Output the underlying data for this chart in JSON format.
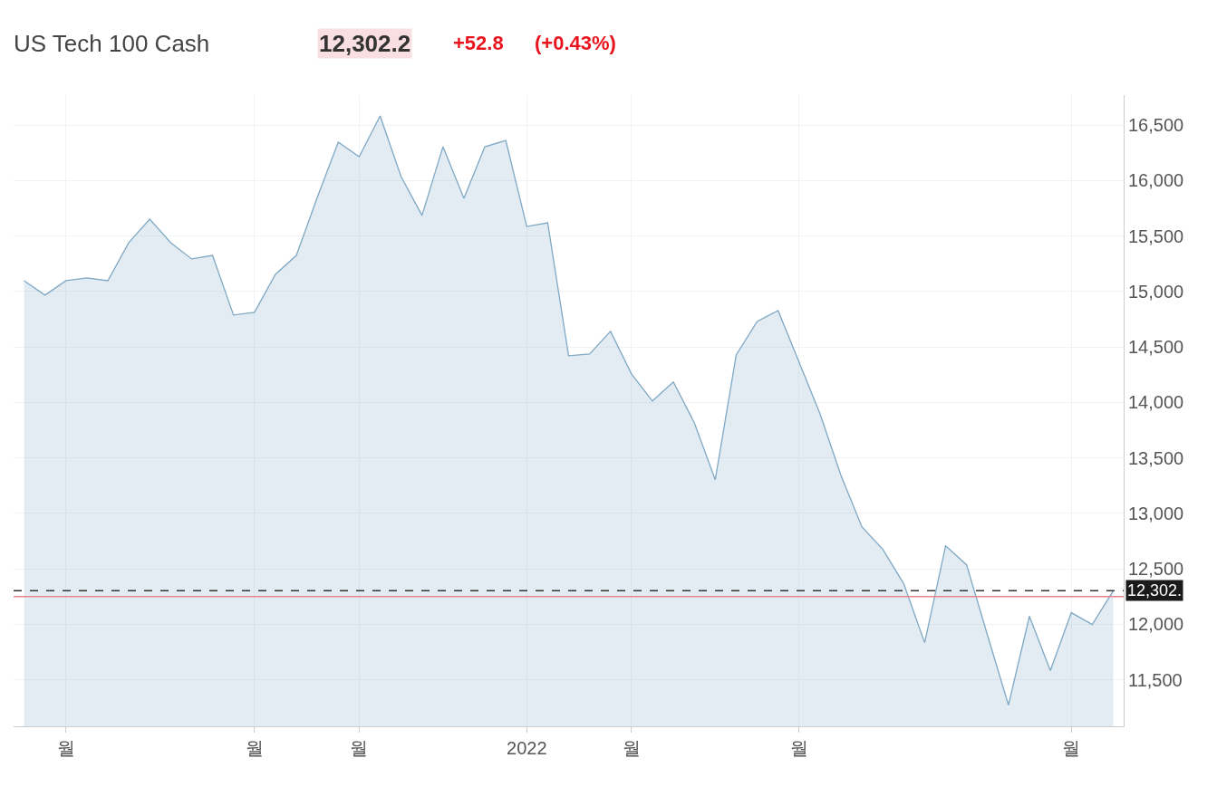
{
  "chart_data": {
    "type": "area",
    "title": "US Tech 100 Cash",
    "annotations": [
      "12,302.2",
      "+52.8",
      "(+0.43%)"
    ],
    "categories": [
      null,
      null,
      "월",
      null,
      null,
      null,
      null,
      null,
      null,
      null,
      null,
      "월",
      null,
      null,
      null,
      null,
      "월",
      null,
      null,
      null,
      null,
      null,
      null,
      null,
      "2022",
      null,
      null,
      null,
      null,
      "월",
      null,
      null,
      null,
      null,
      null,
      null,
      null,
      "월",
      null,
      null,
      null,
      null,
      null,
      null,
      null,
      null,
      null,
      null,
      null,
      null,
      "월",
      null,
      null
    ],
    "series": [
      {
        "color": "#7fa8c4",
        "values": [
          15097,
          14967,
          15097,
          15122,
          15097,
          15440,
          15652,
          15440,
          15293,
          15325,
          14787,
          14812,
          15154,
          15325,
          15847,
          16345,
          16215,
          16582,
          16035,
          15685,
          16304,
          15839,
          16304,
          16361,
          15586,
          15619,
          14420,
          14436,
          14640,
          14257,
          14012,
          14184,
          13817,
          13303,
          14428,
          14730,
          14828,
          14363,
          13898,
          13343,
          12878,
          12675,
          12365,
          11834,
          12707,
          12536,
          11900,
          11272,
          12072,
          11582,
          12104,
          11998,
          12302.2
        ]
      }
    ],
    "ylim": [
      11080,
      16770
    ],
    "yticks": [
      {
        "value": 11500,
        "label": "11,500"
      },
      {
        "value": 12000,
        "label": "12,000"
      },
      {
        "value": 12500,
        "label": "12,500"
      },
      {
        "value": 13000,
        "label": "13,000"
      },
      {
        "value": 13500,
        "label": "13,500"
      },
      {
        "value": 14000,
        "label": "14,000"
      },
      {
        "value": 14500,
        "label": "14,500"
      },
      {
        "value": 15000,
        "label": "15,000"
      },
      {
        "value": 15500,
        "label": "15,500"
      },
      {
        "value": 16000,
        "label": "16,000"
      },
      {
        "value": 16500,
        "label": "16,500"
      }
    ],
    "ref_lines": [
      {
        "axis": "y",
        "value": 12302.2,
        "label": "12,302.",
        "color": "#333333",
        "line_style": "dashed"
      },
      {
        "axis": "y",
        "value": 12249.4,
        "color": "#e8868f",
        "line_style": "solid"
      }
    ],
    "grid": true,
    "marker": "none",
    "line_style": "solid"
  }
}
